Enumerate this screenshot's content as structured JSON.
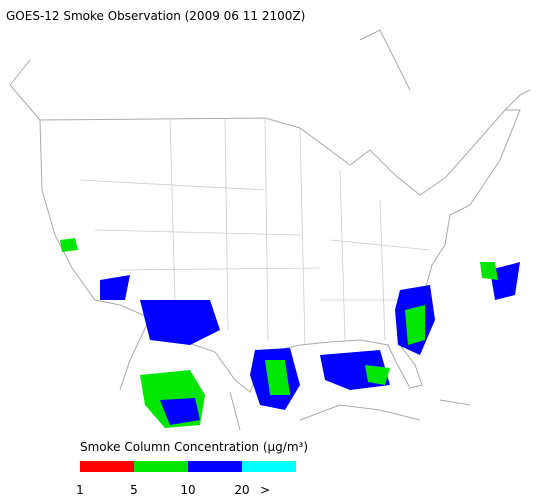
{
  "header": {
    "title": "GOES-12 Smoke Observation (2009 06 11  2100Z)"
  },
  "legend": {
    "title": "Smoke Column Concentration (μg/m³)",
    "colors": [
      "#ff0000",
      "#00e600",
      "#0000ff",
      "#00ffff"
    ],
    "labels": [
      "1",
      "5",
      "10",
      "20",
      ">"
    ]
  }
}
